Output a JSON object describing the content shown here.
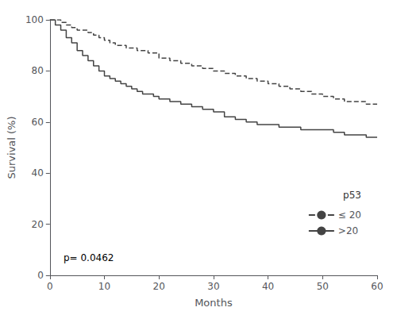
{
  "chart_data": {
    "type": "step",
    "xlabel": "Months",
    "ylabel": "Survival (%)",
    "xlim": [
      0,
      60
    ],
    "ylim": [
      0,
      100
    ],
    "xticks": [
      0,
      10,
      20,
      30,
      40,
      50,
      60
    ],
    "yticks": [
      0,
      20,
      40,
      60,
      80,
      100
    ],
    "grid": false,
    "legend": "lower right",
    "legend_title": "p53",
    "annotations": [
      {
        "text": "p= 0.0462",
        "x": 2.5,
        "y": 5
      }
    ],
    "series": [
      {
        "name": "≤ 20",
        "color": "#444444",
        "line_style": "dashed",
        "x": [
          0,
          1,
          2,
          3,
          4,
          5,
          6,
          7,
          8,
          9,
          10,
          11,
          12,
          14,
          16,
          18,
          20,
          22,
          24,
          26,
          28,
          30,
          32,
          34,
          36,
          38,
          40,
          42,
          44,
          46,
          48,
          50,
          52,
          54,
          56,
          58,
          60
        ],
        "values": [
          100,
          100,
          99,
          98,
          97,
          96,
          96,
          95,
          94,
          93,
          92,
          91,
          90,
          89,
          88,
          87,
          85,
          84,
          83,
          82,
          81,
          80,
          79,
          78,
          77,
          76,
          75,
          74,
          73,
          72,
          71,
          70,
          69,
          68,
          68,
          67,
          67
        ]
      },
      {
        "name": ">20",
        "color": "#444444",
        "line_style": "solid",
        "x": [
          0,
          1,
          2,
          3,
          4,
          5,
          6,
          7,
          8,
          9,
          10,
          11,
          12,
          13,
          14,
          15,
          16,
          17,
          18,
          19,
          20,
          22,
          24,
          26,
          28,
          30,
          32,
          34,
          36,
          38,
          40,
          42,
          44,
          46,
          48,
          50,
          52,
          54,
          56,
          58,
          60
        ],
        "values": [
          100,
          98,
          96,
          93,
          91,
          88,
          86,
          84,
          82,
          80,
          78,
          77,
          76,
          75,
          74,
          73,
          72,
          71,
          71,
          70,
          69,
          68,
          67,
          66,
          65,
          64,
          62,
          61,
          60,
          59,
          59,
          58,
          58,
          57,
          57,
          57,
          56,
          55,
          55,
          54,
          54
        ]
      }
    ]
  }
}
